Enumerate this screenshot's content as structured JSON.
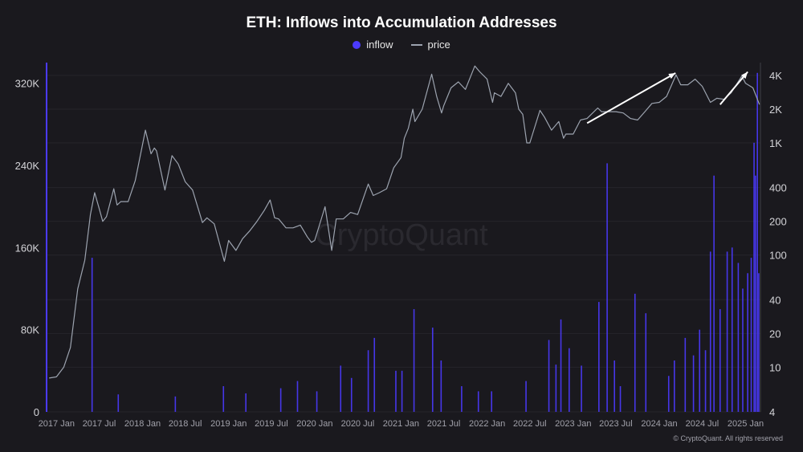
{
  "chart_data": {
    "type": "bar",
    "title": "ETH: Inflows into Accumulation Addresses",
    "legend": [
      {
        "name": "inflow",
        "color": "#4b3aff"
      },
      {
        "name": "price",
        "color": "#9ca3af"
      }
    ],
    "x_ticks": [
      "2017 Jan",
      "2017 Jul",
      "2018 Jan",
      "2018 Jul",
      "2019 Jan",
      "2019 Jul",
      "2020 Jan",
      "2020 Jul",
      "2021 Jan",
      "2021 Jul",
      "2022 Jan",
      "2022 Jul",
      "2023 Jan",
      "2023 Jul",
      "2024 Jan",
      "2024 Jul",
      "2025 Jan"
    ],
    "x_range": [
      "2016-11-20",
      "2025-03-05"
    ],
    "y_left": {
      "label": "",
      "ticks": [
        0,
        80000,
        160000,
        240000,
        320000
      ],
      "tick_labels": [
        "0",
        "80K",
        "160K",
        "240K",
        "320K"
      ],
      "ylim": [
        0,
        340000
      ]
    },
    "y_right": {
      "label": "",
      "scale": "log",
      "ticks": [
        4,
        10,
        20,
        40,
        100,
        200,
        400,
        1000,
        2000,
        4000
      ],
      "tick_labels": [
        "4",
        "10",
        "20",
        "40",
        "100",
        "200",
        "400",
        "1K",
        "2K",
        "4K"
      ],
      "ylim": [
        4,
        5200
      ]
    },
    "series": [
      {
        "name": "price",
        "axis": "right",
        "type": "line",
        "x": [
          "2016-12-01",
          "2017-01-01",
          "2017-02-01",
          "2017-03-01",
          "2017-04-01",
          "2017-05-01",
          "2017-05-25",
          "2017-06-12",
          "2017-07-01",
          "2017-07-16",
          "2017-08-01",
          "2017-09-01",
          "2017-09-15",
          "2017-10-01",
          "2017-11-01",
          "2017-12-01",
          "2018-01-13",
          "2018-02-06",
          "2018-02-20",
          "2018-03-01",
          "2018-04-06",
          "2018-05-06",
          "2018-06-01",
          "2018-07-01",
          "2018-08-01",
          "2018-09-12",
          "2018-10-01",
          "2018-11-01",
          "2018-12-14",
          "2019-01-01",
          "2019-02-01",
          "2019-03-01",
          "2019-04-01",
          "2019-05-01",
          "2019-06-01",
          "2019-06-26",
          "2019-07-15",
          "2019-08-01",
          "2019-09-01",
          "2019-10-01",
          "2019-11-01",
          "2019-12-01",
          "2019-12-18",
          "2020-01-01",
          "2020-02-14",
          "2020-03-13",
          "2020-04-01",
          "2020-05-01",
          "2020-06-01",
          "2020-07-01",
          "2020-08-15",
          "2020-09-05",
          "2020-10-01",
          "2020-11-01",
          "2020-12-01",
          "2021-01-01",
          "2021-01-15",
          "2021-02-01",
          "2021-02-20",
          "2021-03-01",
          "2021-04-01",
          "2021-05-11",
          "2021-06-01",
          "2021-06-22",
          "2021-07-01",
          "2021-08-01",
          "2021-09-01",
          "2021-10-01",
          "2021-11-10",
          "2021-12-01",
          "2022-01-01",
          "2022-01-24",
          "2022-02-01",
          "2022-03-01",
          "2022-04-01",
          "2022-05-01",
          "2022-05-15",
          "2022-06-01",
          "2022-06-18",
          "2022-07-01",
          "2022-08-13",
          "2022-09-01",
          "2022-10-01",
          "2022-11-01",
          "2022-11-21",
          "2022-12-01",
          "2023-01-01",
          "2023-02-01",
          "2023-03-01",
          "2023-04-15",
          "2023-05-01",
          "2023-06-01",
          "2023-07-01",
          "2023-08-01",
          "2023-09-01",
          "2023-10-01",
          "2023-11-01",
          "2023-12-01",
          "2024-01-01",
          "2024-02-01",
          "2024-03-12",
          "2024-04-01",
          "2024-05-01",
          "2024-06-01",
          "2024-07-01",
          "2024-08-05",
          "2024-09-01",
          "2024-10-01",
          "2024-11-01",
          "2024-12-16",
          "2025-01-01",
          "2025-02-01",
          "2025-03-01"
        ],
        "values": [
          8,
          8.2,
          10,
          15,
          50,
          90,
          230,
          360,
          260,
          200,
          220,
          390,
          280,
          300,
          300,
          460,
          1300,
          800,
          900,
          850,
          380,
          770,
          650,
          450,
          380,
          195,
          215,
          190,
          88,
          135,
          110,
          140,
          165,
          200,
          250,
          310,
          215,
          210,
          175,
          175,
          185,
          145,
          130,
          135,
          270,
          110,
          210,
          210,
          240,
          230,
          430,
          340,
          360,
          390,
          600,
          740,
          1100,
          1350,
          2000,
          1550,
          2000,
          4100,
          2600,
          1850,
          2150,
          3100,
          3500,
          3000,
          4850,
          4300,
          3700,
          2300,
          2800,
          2600,
          3400,
          2800,
          2000,
          1800,
          1000,
          1000,
          1950,
          1700,
          1300,
          1550,
          1100,
          1200,
          1200,
          1600,
          1650,
          2050,
          1900,
          1900,
          1900,
          1850,
          1650,
          1600,
          1900,
          2250,
          2300,
          2600,
          4050,
          3300,
          3300,
          3700,
          3200,
          2300,
          2500,
          2450,
          2800,
          3950,
          3400,
          3100,
          2200
        ]
      },
      {
        "name": "inflow",
        "axis": "left",
        "type": "bar",
        "spikes": [
          {
            "x": "2017-06-01",
            "v": 150000
          },
          {
            "x": "2017-09-20",
            "v": 17000
          },
          {
            "x": "2018-05-20",
            "v": 15000
          },
          {
            "x": "2018-12-10",
            "v": 25000
          },
          {
            "x": "2019-03-15",
            "v": 18000
          },
          {
            "x": "2019-08-10",
            "v": 23000
          },
          {
            "x": "2019-10-20",
            "v": 30000
          },
          {
            "x": "2020-01-10",
            "v": 20000
          },
          {
            "x": "2020-04-20",
            "v": 45000
          },
          {
            "x": "2020-06-05",
            "v": 33000
          },
          {
            "x": "2020-08-15",
            "v": 60000
          },
          {
            "x": "2020-09-10",
            "v": 72000
          },
          {
            "x": "2020-12-10",
            "v": 40000
          },
          {
            "x": "2021-01-05",
            "v": 40000
          },
          {
            "x": "2021-02-25",
            "v": 100000
          },
          {
            "x": "2021-05-15",
            "v": 82000
          },
          {
            "x": "2021-06-20",
            "v": 50000
          },
          {
            "x": "2021-09-15",
            "v": 25000
          },
          {
            "x": "2021-11-25",
            "v": 20000
          },
          {
            "x": "2022-01-20",
            "v": 20000
          },
          {
            "x": "2022-06-15",
            "v": 30000
          },
          {
            "x": "2022-09-20",
            "v": 70000
          },
          {
            "x": "2022-10-20",
            "v": 46000
          },
          {
            "x": "2022-11-10",
            "v": 90000
          },
          {
            "x": "2022-12-15",
            "v": 62000
          },
          {
            "x": "2023-02-05",
            "v": 45000
          },
          {
            "x": "2023-04-20",
            "v": 107000
          },
          {
            "x": "2023-05-25",
            "v": 242000
          },
          {
            "x": "2023-06-25",
            "v": 50000
          },
          {
            "x": "2023-07-20",
            "v": 25000
          },
          {
            "x": "2023-09-20",
            "v": 115000
          },
          {
            "x": "2023-11-05",
            "v": 96000
          },
          {
            "x": "2024-02-10",
            "v": 35000
          },
          {
            "x": "2024-03-05",
            "v": 50000
          },
          {
            "x": "2024-04-20",
            "v": 72000
          },
          {
            "x": "2024-05-25",
            "v": 55000
          },
          {
            "x": "2024-06-20",
            "v": 80000
          },
          {
            "x": "2024-07-15",
            "v": 60000
          },
          {
            "x": "2024-08-05",
            "v": 156000
          },
          {
            "x": "2024-08-20",
            "v": 230000
          },
          {
            "x": "2024-09-15",
            "v": 100000
          },
          {
            "x": "2024-10-15",
            "v": 156000
          },
          {
            "x": "2024-11-05",
            "v": 160000
          },
          {
            "x": "2024-12-01",
            "v": 145000
          },
          {
            "x": "2024-12-20",
            "v": 120000
          },
          {
            "x": "2025-01-10",
            "v": 135000
          },
          {
            "x": "2025-01-25",
            "v": 150000
          },
          {
            "x": "2025-02-06",
            "v": 262000
          },
          {
            "x": "2025-02-12",
            "v": 230000
          },
          {
            "x": "2025-02-20",
            "v": 330000
          },
          {
            "x": "2025-02-26",
            "v": 135000
          }
        ]
      }
    ],
    "annotations": [
      {
        "type": "arrow",
        "from": [
          "2023-03-01",
          1500
        ],
        "to": [
          "2024-03-10",
          4200
        ]
      },
      {
        "type": "arrow",
        "from": [
          "2024-09-15",
          2200
        ],
        "to": [
          "2025-01-10",
          4300
        ]
      }
    ],
    "watermark": "CryptoQuant",
    "grid": true
  },
  "credit": "© CryptoQuant. All rights reserved"
}
